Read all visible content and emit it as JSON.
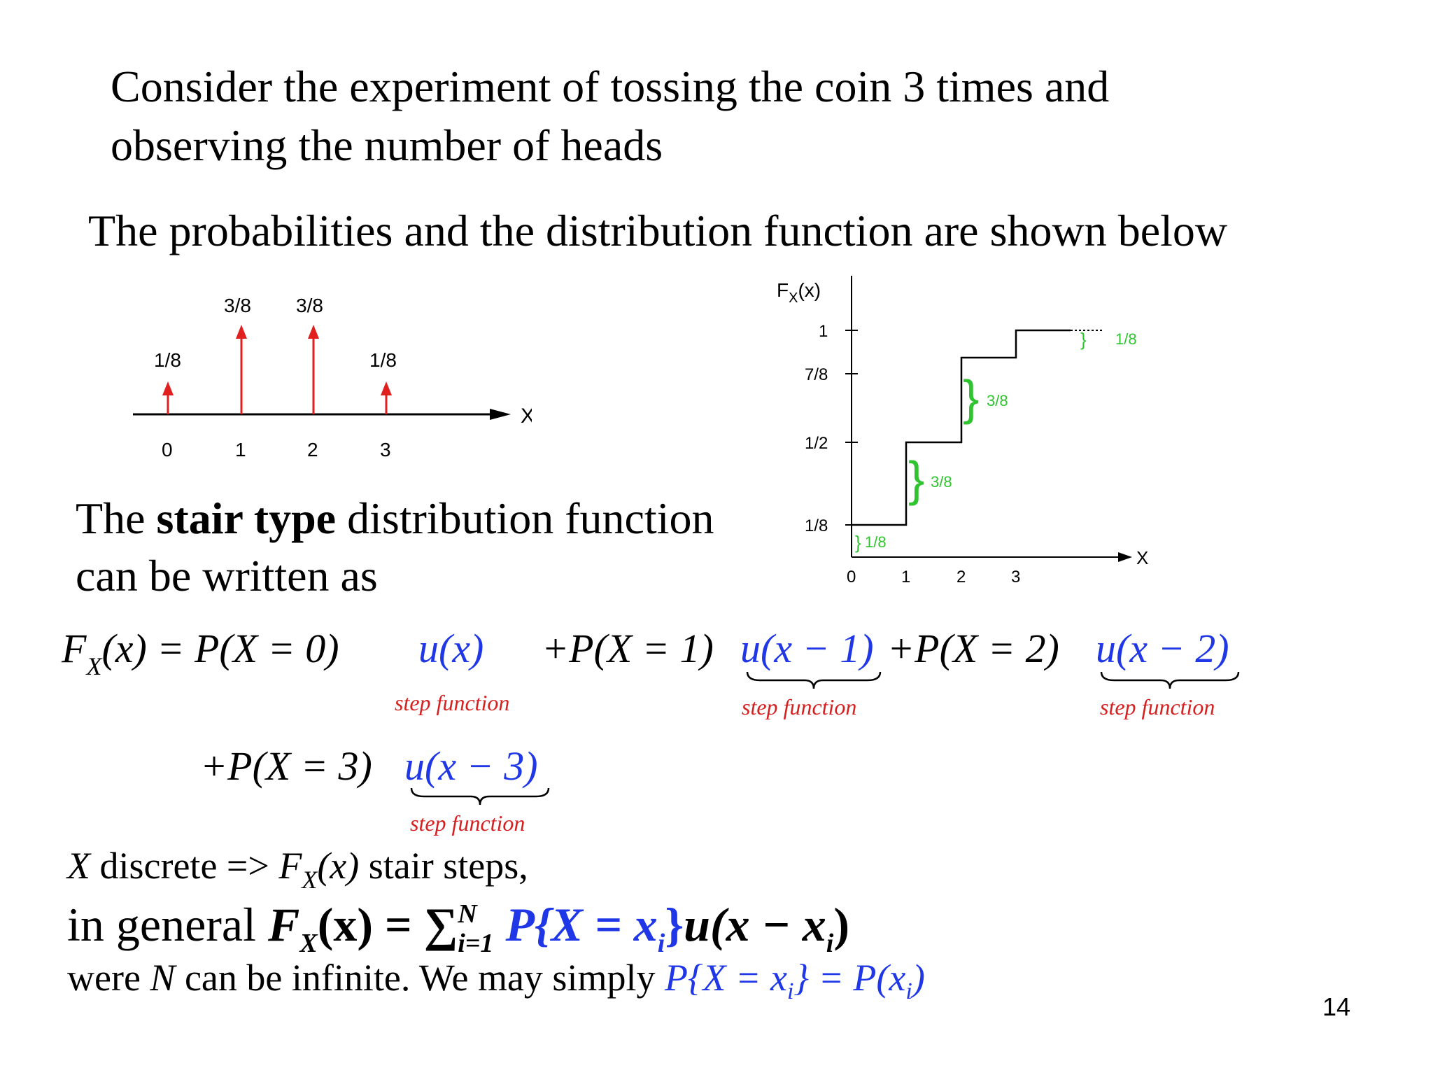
{
  "intro": {
    "line1": "Consider the experiment of tossing the coin 3 times and",
    "line2": "observing the number of heads",
    "line3": "The probabilities and  the distribution function are shown below"
  },
  "pmf_chart": {
    "labels": [
      "1/8",
      "3/8",
      "3/8",
      "1/8"
    ],
    "ticks": [
      "0",
      "1",
      "2",
      "3"
    ],
    "axis_label": "X"
  },
  "cdf_chart": {
    "y_title": "F",
    "y_title_sub": "X",
    "y_title_arg": "(x)",
    "y_ticks": [
      "1",
      "7/8",
      "1/2",
      "1/8"
    ],
    "x_ticks": [
      "0",
      "1",
      "2",
      "3"
    ],
    "axis_label": "X",
    "jumps": [
      "1/8",
      "3/8",
      "3/8",
      "1/8"
    ]
  },
  "stair": {
    "pre": "The ",
    "bold": "stair type",
    "post": " distribution function",
    "line2": "can be written as"
  },
  "equation": {
    "lhs": "F",
    "lhs_sub": "X",
    "lhs_arg": "(x) = P(X = 0)",
    "u0": "u(x)",
    "term1": "+P(X = 1)",
    "u1": "u(x − 1)",
    "term2": "+P(X = 2)",
    "u2": "u(x − 2)",
    "term3": "+P(X = 3)",
    "u3": "u(x − 3)",
    "note": "step  function"
  },
  "bottom": {
    "line1_a": "X",
    "line1_b": " discrete => ",
    "line1_c": "F",
    "line1_d": "X",
    "line1_e": "(x)",
    "line1_f": " stair steps,",
    "line2_a": "in general ",
    "line2_b": "F",
    "line2_c": "X",
    "line2_d": "(x) = ∑",
    "line2_sup": "N",
    "line2_sub": "i=1",
    "line2_e": " P{X = x",
    "line2_f": "i",
    "line2_g": "}",
    "line2_h": "u(x − x",
    "line2_i": "i",
    "line2_j": ")",
    "line3_a": "were ",
    "line3_b": "N",
    "line3_c": " can be infinite. We may simply ",
    "line3_d": "P{X = x",
    "line3_e": "i",
    "line3_f": "} = P(x",
    "line3_g": "i",
    "line3_h": ")"
  },
  "page_number": "14",
  "colors": {
    "red": "#e0201f",
    "green": "#2fc42f",
    "blue": "#1f37e6",
    "note": "#d42020"
  }
}
